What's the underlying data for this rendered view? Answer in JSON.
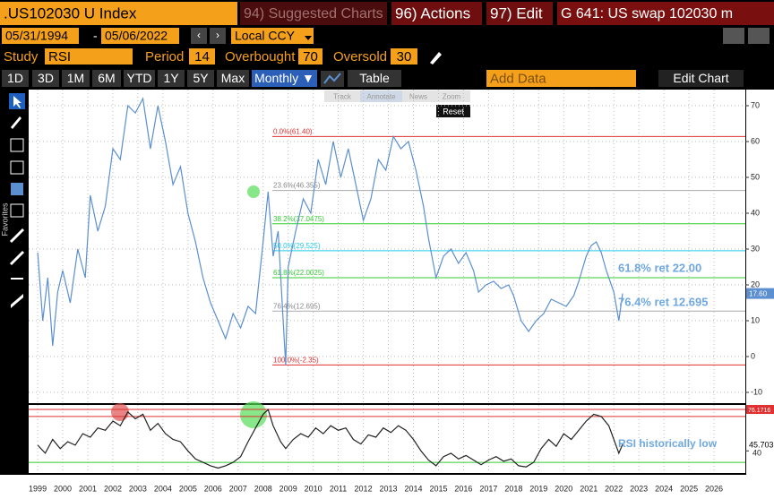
{
  "header": {
    "ticker": ".US102030 U  Index",
    "suggested": "94) Suggested Charts",
    "actions": "96) Actions",
    "edit": "97) Edit",
    "title": "G 641: US swap 102030 m"
  },
  "dates": {
    "start": "05/31/1994",
    "separator": "-",
    "end": "05/06/2022",
    "currency": "Local CCY"
  },
  "study": {
    "label": "Study",
    "name": "RSI",
    "period_label": "Period",
    "period": 14,
    "overbought_label": "Overbought",
    "overbought": 70,
    "oversold_label": "Oversold",
    "oversold": 30
  },
  "toolbar": {
    "ranges": [
      "1D",
      "3D",
      "1M",
      "6M",
      "YTD",
      "1Y",
      "5Y",
      "Max"
    ],
    "frequency": "Monthly ▼",
    "table": "Table",
    "add_data": "Add Data",
    "edit_chart": "Edit Chart"
  },
  "chart_tools": {
    "buttons": [
      "Track",
      "Annotate",
      "News",
      "Zoom"
    ],
    "reset": "Reset"
  },
  "sidebar": {
    "favorites": "Favorites"
  },
  "chart_data": {
    "type": "line",
    "x": [
      1999.0,
      1999.2,
      1999.4,
      1999.6,
      1999.8,
      2000.0,
      2000.3,
      2000.6,
      2000.9,
      2001.1,
      2001.4,
      2001.7,
      2002.0,
      2002.3,
      2002.6,
      2002.9,
      2003.2,
      2003.5,
      2003.8,
      2004.1,
      2004.4,
      2004.7,
      2005.0,
      2005.3,
      2005.6,
      2005.9,
      2006.2,
      2006.5,
      2006.8,
      2007.1,
      2007.4,
      2007.7,
      2008.0,
      2008.2,
      2008.4,
      2008.6,
      2008.8,
      2008.9,
      2009.0,
      2009.3,
      2009.6,
      2009.9,
      2010.2,
      2010.5,
      2010.8,
      2011.1,
      2011.4,
      2011.7,
      2012.0,
      2012.3,
      2012.6,
      2012.9,
      2013.2,
      2013.5,
      2013.8,
      2014.1,
      2014.4,
      2014.6,
      2014.9,
      2015.2,
      2015.5,
      2015.8,
      2016.1,
      2016.4,
      2016.6,
      2016.9,
      2017.2,
      2017.5,
      2017.8,
      2018.0,
      2018.3,
      2018.6,
      2018.9,
      2019.2,
      2019.5,
      2019.8,
      2020.1,
      2020.4,
      2020.6,
      2020.9,
      2021.1,
      2021.3,
      2021.5,
      2021.7,
      2022.0,
      2022.2,
      2022.35
    ],
    "series": [
      {
        "color": "#5b8fd0",
        "values": [
          29,
          10,
          22,
          3,
          18,
          24,
          15,
          30,
          22,
          45,
          35,
          42,
          58,
          55,
          70,
          68,
          72,
          58,
          70,
          60,
          48,
          53,
          40,
          32,
          22,
          15,
          10,
          5,
          12,
          8,
          14,
          12,
          32,
          46,
          28,
          35,
          10,
          -2.35,
          25,
          35,
          44,
          40,
          55,
          48,
          60,
          50,
          58,
          48,
          38,
          44,
          55,
          52,
          61.4,
          58,
          60,
          52,
          42,
          33,
          22,
          28,
          30,
          26,
          29,
          24,
          18,
          20,
          21,
          19,
          20,
          17,
          10,
          7,
          10,
          12,
          16,
          15,
          14,
          17,
          21,
          28,
          31,
          32,
          29,
          24,
          18,
          10,
          17.6
        ]
      }
    ],
    "xlim": [
      1998.64,
      2027.25
    ],
    "xticks": [
      1999,
      2000,
      2001,
      2002,
      2003,
      2004,
      2005,
      2006,
      2007,
      2008,
      2009,
      2010,
      2011,
      2012,
      2013,
      2014,
      2015,
      2016,
      2017,
      2018,
      2019,
      2020,
      2021,
      2022,
      2023,
      2024,
      2025,
      2026
    ],
    "ylim": [
      -13,
      74.5
    ],
    "yticks": [
      -10,
      0,
      10,
      20,
      30,
      40,
      50,
      60,
      70
    ],
    "grid": true,
    "fib_levels": [
      {
        "label": "0.0%(61.40)",
        "value": 61.4,
        "color": "#e03030"
      },
      {
        "label": "23.6%(46.355)",
        "value": 46.355,
        "color": "#aaaaaa"
      },
      {
        "label": "38.2%(37.0475)",
        "value": 37.0475,
        "color": "#33cc33"
      },
      {
        "label": "50.0%(29.525)",
        "value": 29.525,
        "color": "#22ccee"
      },
      {
        "label": "61.8%(22.0025)",
        "value": 22.0025,
        "color": "#33cc33"
      },
      {
        "label": "76.4%(12.695)",
        "value": 12.695,
        "color": "#aaaaaa"
      },
      {
        "label": "100.0%(-2.35)",
        "value": -2.35,
        "color": "#e03030"
      }
    ],
    "annotations": [
      "61.8% ret 22.00",
      "76.4% ret 12.695"
    ],
    "last_value": {
      "value": 17.6,
      "label": "17.60"
    }
  },
  "rsi_chart": {
    "type": "line",
    "x": [
      1999.0,
      1999.3,
      1999.6,
      1999.9,
      2000.2,
      2000.5,
      2000.8,
      2001.1,
      2001.4,
      2001.7,
      2002.0,
      2002.3,
      2002.6,
      2002.9,
      2003.2,
      2003.5,
      2003.8,
      2004.1,
      2004.4,
      2004.7,
      2005.0,
      2005.3,
      2005.6,
      2005.9,
      2006.2,
      2006.5,
      2006.8,
      2007.1,
      2007.4,
      2007.7,
      2008.0,
      2008.2,
      2008.4,
      2008.7,
      2008.9,
      2009.2,
      2009.5,
      2009.8,
      2010.1,
      2010.4,
      2010.7,
      2011.0,
      2011.3,
      2011.6,
      2011.9,
      2012.2,
      2012.5,
      2012.8,
      2013.1,
      2013.4,
      2013.7,
      2014.0,
      2014.3,
      2014.6,
      2014.9,
      2015.2,
      2015.5,
      2015.8,
      2016.1,
      2016.4,
      2016.7,
      2017.0,
      2017.3,
      2017.6,
      2017.9,
      2018.2,
      2018.5,
      2018.8,
      2019.1,
      2019.4,
      2019.7,
      2020.0,
      2020.3,
      2020.6,
      2020.9,
      2021.2,
      2021.5,
      2021.8,
      2022.0,
      2022.2,
      2022.35
    ],
    "values": [
      45,
      38,
      50,
      42,
      48,
      45,
      55,
      52,
      60,
      58,
      66,
      62,
      74,
      68,
      72,
      58,
      64,
      55,
      50,
      48,
      40,
      33,
      30,
      27,
      25,
      27,
      30,
      35,
      48,
      60,
      72,
      76,
      62,
      48,
      42,
      50,
      55,
      52,
      60,
      55,
      62,
      58,
      60,
      50,
      46,
      54,
      52,
      60,
      56,
      62,
      58,
      50,
      40,
      32,
      27,
      35,
      38,
      33,
      36,
      32,
      28,
      32,
      35,
      31,
      33,
      27,
      26,
      30,
      42,
      50,
      44,
      55,
      50,
      58,
      66,
      72,
      70,
      62,
      50,
      38,
      45.703
    ],
    "color": "#222222",
    "ylim": [
      20.7,
      80.1
    ],
    "yticks": [
      40
    ],
    "max_value": 76.1716,
    "annotation": "RSI historically low"
  }
}
